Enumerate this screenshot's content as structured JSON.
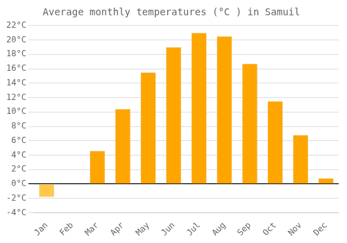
{
  "chart_data": {
    "type": "bar",
    "title": "Average monthly temperatures (°C ) in Samuil",
    "categories": [
      "Jan",
      "Feb",
      "Mar",
      "Apr",
      "May",
      "Jun",
      "Jul",
      "Aug",
      "Sep",
      "Oct",
      "Nov",
      "Dec"
    ],
    "values": [
      -1.8,
      0.0,
      4.6,
      10.4,
      15.5,
      19.0,
      21.0,
      20.5,
      16.7,
      11.5,
      6.8,
      0.8
    ],
    "colors": [
      "#FFC84A",
      "#FFA500",
      "#FFA500",
      "#FFA500",
      "#FFA500",
      "#FFA500",
      "#FFA500",
      "#FFA500",
      "#FFA500",
      "#FFA500",
      "#FFA500",
      "#FFA500"
    ],
    "ylim": [
      -4,
      22
    ],
    "yticks": [
      {
        "value": -4,
        "label": "-4°C"
      },
      {
        "value": -2,
        "label": "-2°C"
      },
      {
        "value": 0,
        "label": "0°C"
      },
      {
        "value": 2,
        "label": "2°C"
      },
      {
        "value": 4,
        "label": "4°C"
      },
      {
        "value": 6,
        "label": "6°C"
      },
      {
        "value": 8,
        "label": "8°C"
      },
      {
        "value": 10,
        "label": "10°C"
      },
      {
        "value": 12,
        "label": "12°C"
      },
      {
        "value": 14,
        "label": "14°C"
      },
      {
        "value": 16,
        "label": "16°C"
      },
      {
        "value": 18,
        "label": "18°C"
      },
      {
        "value": 20,
        "label": "20°C"
      },
      {
        "value": 22,
        "label": "22°C"
      }
    ],
    "grid": true
  }
}
